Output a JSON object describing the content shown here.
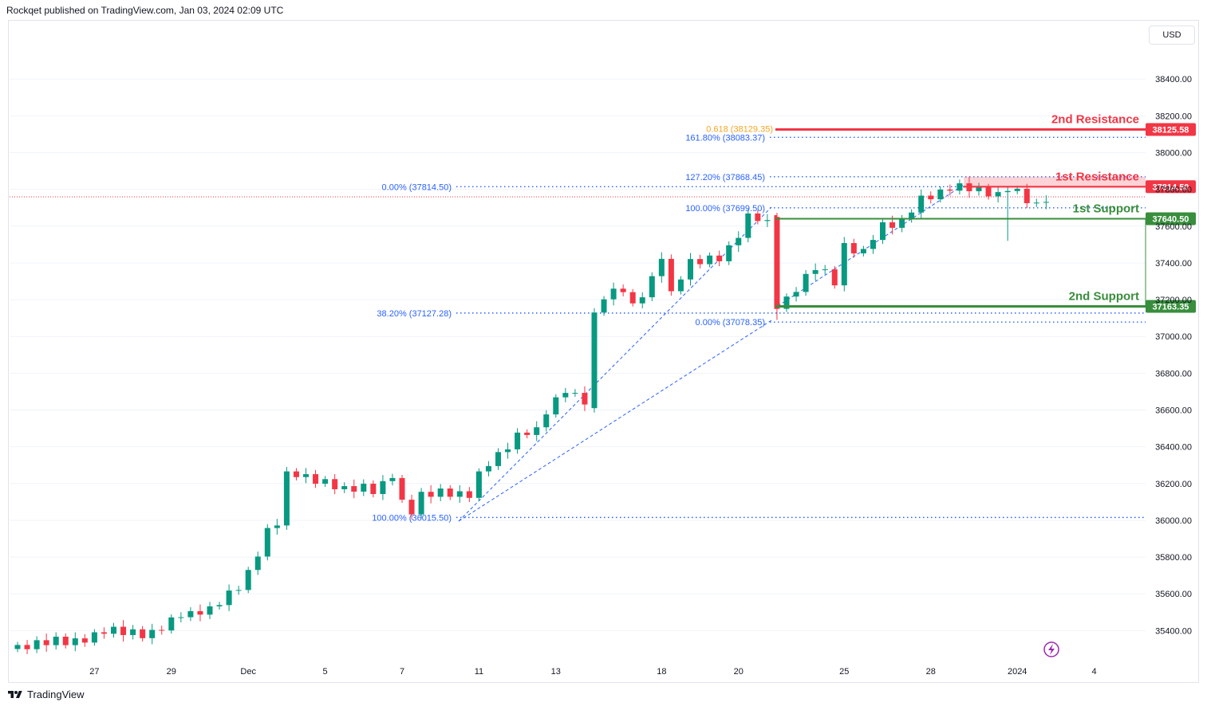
{
  "header": {
    "published": "Rockqet published on TradingView.com, Jan 03, 2024 02:09 UTC"
  },
  "currency_button": "USD",
  "footer": {
    "brand": "TradingView"
  },
  "colors": {
    "up": "#089981",
    "down": "#f23645",
    "fib": "#2962ff",
    "resistance": "#f23645",
    "support": "#388e3c",
    "golden": "#f5a623",
    "grid": "#f0f3fa"
  },
  "chart_data": {
    "type": "candlestick",
    "y_axis": {
      "range": [
        35250,
        38700
      ],
      "ticks": [
        "35400.00",
        "35600.00",
        "35800.00",
        "36000.00",
        "36200.00",
        "36400.00",
        "36600.00",
        "36800.00",
        "37000.00",
        "37200.00",
        "37400.00",
        "37600.00",
        "37800.00",
        "38000.00",
        "38200.00",
        "38400.00"
      ]
    },
    "x_axis": {
      "ticks": [
        {
          "i": 8,
          "label": "27"
        },
        {
          "i": 16,
          "label": "29"
        },
        {
          "i": 24,
          "label": "Dec"
        },
        {
          "i": 32,
          "label": "5"
        },
        {
          "i": 40,
          "label": "7"
        },
        {
          "i": 48,
          "label": "11"
        },
        {
          "i": 56,
          "label": "13"
        },
        {
          "i": 67,
          "label": "18"
        },
        {
          "i": 75,
          "label": "20"
        },
        {
          "i": 86,
          "label": "25"
        },
        {
          "i": 95,
          "label": "28"
        },
        {
          "i": 104,
          "label": "2024"
        },
        {
          "i": 112,
          "label": "4"
        }
      ]
    },
    "candles": [],
    "levels": [
      {
        "name": "2nd Resistance",
        "price": 38125.58,
        "tag": "38125.58",
        "kind": "resistance"
      },
      {
        "name": "1st Resistance",
        "price": 37814.5,
        "tag": "37814.50",
        "kind": "resistance"
      },
      {
        "name": "1st Support",
        "price": 37640.5,
        "tag": "37640.50",
        "kind": "support"
      },
      {
        "name": "2nd Support",
        "price": 37163.35,
        "tag": "37163.35",
        "kind": "support"
      }
    ],
    "fib_labels": [
      {
        "text": "0.618 (38129.35)",
        "price": 38129.35,
        "color": "golden"
      },
      {
        "text": "161.80% (38083.37)",
        "price": 38083.37,
        "color": "fib"
      },
      {
        "text": "127.20% (37868.45)",
        "price": 37868.45,
        "color": "fib"
      },
      {
        "text": "0.00% (37814.50)",
        "price": 37814.5,
        "color": "fib"
      },
      {
        "text": "100.00% (37699.50)",
        "price": 37699.5,
        "color": "fib"
      },
      {
        "text": "38.20% (37127.28)",
        "price": 37127.28,
        "color": "fib"
      },
      {
        "text": "0.00% (37078.35)",
        "price": 37078.35,
        "color": "fib"
      },
      {
        "text": "100.00% (36015.50)",
        "price": 36015.5,
        "color": "fib"
      }
    ]
  }
}
